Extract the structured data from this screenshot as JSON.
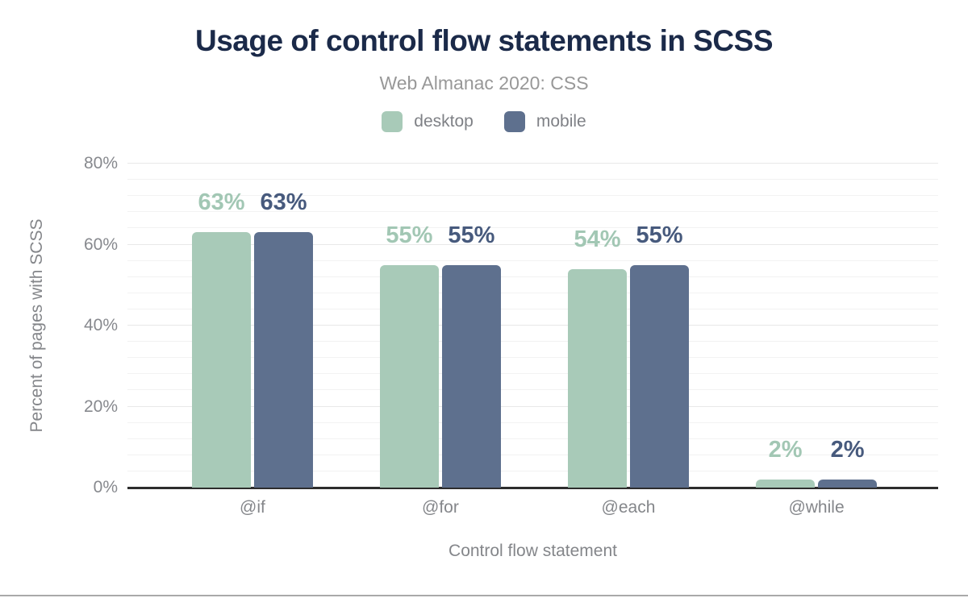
{
  "figure": {
    "bottom_divider_color": "#a9a9a9"
  },
  "chart_data": {
    "type": "bar",
    "title": "Usage of control flow statements in SCSS",
    "subtitle": "Web Almanac 2020: CSS",
    "xlabel": "Control flow statement",
    "ylabel": "Percent of pages with SCSS",
    "categories": [
      "@if",
      "@for",
      "@each",
      "@while"
    ],
    "series": [
      {
        "name": "desktop",
        "values": [
          63,
          55,
          54,
          2
        ],
        "labels": [
          "63%",
          "55%",
          "54%",
          "2%"
        ],
        "bar_color": "#a8cab8",
        "label_color": "#a2c7b4"
      },
      {
        "name": "mobile",
        "values": [
          63,
          55,
          55,
          2
        ],
        "labels": [
          "63%",
          "55%",
          "55%",
          "2%"
        ],
        "bar_color": "#5e708e",
        "label_color": "#475a7d"
      }
    ],
    "ylim": [
      0,
      80
    ],
    "yticks": [
      {
        "value": 0,
        "label": "0%"
      },
      {
        "value": 20,
        "label": "20%"
      },
      {
        "value": 40,
        "label": "40%"
      },
      {
        "value": 60,
        "label": "60%"
      },
      {
        "value": 80,
        "label": "80%"
      }
    ],
    "minor_grid_step": 4,
    "major_grid_step": 20,
    "grid": true,
    "legend_position": "top",
    "colors": {
      "title": "#1b2a49",
      "subtitle": "#989898",
      "axis_text": "#84868a",
      "tick_text": "#87898e",
      "gridline_minor": "#f2f2f2",
      "gridline_major": "#e8e8e8",
      "axis_line": "#2d2d2d"
    }
  }
}
